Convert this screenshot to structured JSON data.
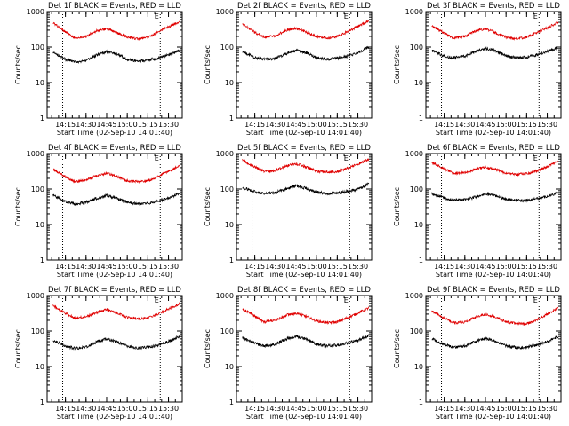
{
  "chart_data": [
    {
      "type": "line",
      "title": "Det 1f BLACK = Events, RED = LLD",
      "xlabel": "Start Time (02-Sep-10 14:01:40)",
      "ylabel": "Counts/sec",
      "yscale": "log",
      "ylim": [
        1,
        1000
      ],
      "xlim": [
        "14:01:40",
        "15:40"
      ],
      "xticks": [
        "14:15",
        "14:30",
        "14:45",
        "15:00",
        "15:15",
        "15:30"
      ],
      "yticks": [
        "1",
        "10",
        "100",
        "1000"
      ],
      "vlines": [
        "14:13",
        "15:24"
      ],
      "marker": "E",
      "series": [
        {
          "name": "LLD",
          "color": "#e00000",
          "x": [
            "14:06",
            "14:15",
            "14:22",
            "14:30",
            "14:38",
            "14:45",
            "14:52",
            "15:00",
            "15:08",
            "15:15",
            "15:22",
            "15:30",
            "15:38"
          ],
          "y": [
            480,
            270,
            180,
            200,
            290,
            330,
            260,
            190,
            170,
            190,
            260,
            370,
            520
          ]
        },
        {
          "name": "Events",
          "color": "#000000",
          "x": [
            "14:06",
            "14:15",
            "14:22",
            "14:30",
            "14:38",
            "14:45",
            "14:52",
            "15:00",
            "15:08",
            "15:15",
            "15:22",
            "15:30",
            "15:38"
          ],
          "y": [
            70,
            45,
            38,
            42,
            60,
            75,
            65,
            45,
            40,
            42,
            48,
            60,
            80
          ]
        }
      ]
    },
    {
      "type": "line",
      "title": "Det 2f BLACK = Events, RED = LLD",
      "xlabel": "Start Time (02-Sep-10 14:01:40)",
      "ylabel": "Counts/sec",
      "yscale": "log",
      "ylim": [
        1,
        1000
      ],
      "xlim": [
        "14:01:40",
        "15:40"
      ],
      "xticks": [
        "14:15",
        "14:30",
        "14:45",
        "15:00",
        "15:15",
        "15:30"
      ],
      "yticks": [
        "1",
        "10",
        "100",
        "1000"
      ],
      "vlines": [
        "14:13",
        "15:24"
      ],
      "marker": "E",
      "series": [
        {
          "name": "LLD",
          "color": "#e00000",
          "x": [
            "14:06",
            "14:15",
            "14:22",
            "14:30",
            "14:38",
            "14:45",
            "14:52",
            "15:00",
            "15:08",
            "15:15",
            "15:22",
            "15:30",
            "15:38"
          ],
          "y": [
            450,
            260,
            190,
            210,
            300,
            340,
            270,
            200,
            180,
            200,
            270,
            380,
            560
          ]
        },
        {
          "name": "Events",
          "color": "#000000",
          "x": [
            "14:06",
            "14:15",
            "14:22",
            "14:30",
            "14:38",
            "14:45",
            "14:52",
            "15:00",
            "15:08",
            "15:15",
            "15:22",
            "15:30",
            "15:38"
          ],
          "y": [
            75,
            50,
            45,
            48,
            65,
            80,
            70,
            50,
            45,
            48,
            55,
            70,
            100
          ]
        }
      ]
    },
    {
      "type": "line",
      "title": "Det 3f BLACK = Events, RED = LLD",
      "xlabel": "Start Time (02-Sep-10 14:01:40)",
      "ylabel": "Counts/sec",
      "yscale": "log",
      "ylim": [
        1,
        1000
      ],
      "xlim": [
        "14:01:40",
        "15:40"
      ],
      "xticks": [
        "14:15",
        "14:30",
        "14:45",
        "15:00",
        "15:15",
        "15:30"
      ],
      "yticks": [
        "1",
        "10",
        "100",
        "1000"
      ],
      "vlines": [
        "14:13",
        "15:24"
      ],
      "marker": "E",
      "series": [
        {
          "name": "LLD",
          "color": "#e00000",
          "x": [
            "14:06",
            "14:15",
            "14:22",
            "14:30",
            "14:38",
            "14:45",
            "14:52",
            "15:00",
            "15:08",
            "15:15",
            "15:22",
            "15:30",
            "15:38"
          ],
          "y": [
            400,
            250,
            180,
            200,
            290,
            330,
            260,
            190,
            170,
            190,
            250,
            350,
            500
          ]
        },
        {
          "name": "Events",
          "color": "#000000",
          "x": [
            "14:06",
            "14:15",
            "14:22",
            "14:30",
            "14:38",
            "14:45",
            "14:52",
            "15:00",
            "15:08",
            "15:15",
            "15:22",
            "15:30",
            "15:38"
          ],
          "y": [
            80,
            55,
            50,
            55,
            75,
            90,
            80,
            55,
            50,
            52,
            60,
            75,
            95
          ]
        }
      ]
    },
    {
      "type": "line",
      "title": "Det 4f BLACK = Events, RED = LLD",
      "xlabel": "Start Time (02-Sep-10 14:01:40)",
      "ylabel": "Counts/sec",
      "yscale": "log",
      "ylim": [
        1,
        1000
      ],
      "xlim": [
        "14:01:40",
        "15:40"
      ],
      "xticks": [
        "14:15",
        "14:30",
        "14:45",
        "15:00",
        "15:15",
        "15:30"
      ],
      "yticks": [
        "1",
        "10",
        "100",
        "1000"
      ],
      "vlines": [
        "14:13",
        "15:24"
      ],
      "marker": "E",
      "series": [
        {
          "name": "LLD",
          "color": "#e00000",
          "x": [
            "14:06",
            "14:15",
            "14:22",
            "14:30",
            "14:38",
            "14:45",
            "14:52",
            "15:00",
            "15:08",
            "15:15",
            "15:22",
            "15:30",
            "15:38"
          ],
          "y": [
            350,
            220,
            160,
            180,
            240,
            280,
            230,
            170,
            160,
            170,
            220,
            320,
            450
          ]
        },
        {
          "name": "Events",
          "color": "#000000",
          "x": [
            "14:06",
            "14:15",
            "14:22",
            "14:30",
            "14:38",
            "14:45",
            "14:52",
            "15:00",
            "15:08",
            "15:15",
            "15:22",
            "15:30",
            "15:38"
          ],
          "y": [
            65,
            45,
            38,
            42,
            55,
            65,
            55,
            42,
            38,
            40,
            45,
            55,
            75
          ]
        }
      ]
    },
    {
      "type": "line",
      "title": "Det 5f BLACK = Events, RED = LLD",
      "xlabel": "Start Time (02-Sep-10 14:01:40)",
      "ylabel": "Counts/sec",
      "yscale": "log",
      "ylim": [
        1,
        1000
      ],
      "xlim": [
        "14:01:40",
        "15:40"
      ],
      "xticks": [
        "14:15",
        "14:30",
        "14:45",
        "15:00",
        "15:15",
        "15:30"
      ],
      "yticks": [
        "1",
        "10",
        "100",
        "1000"
      ],
      "vlines": [
        "14:13",
        "15:24"
      ],
      "marker": "E",
      "series": [
        {
          "name": "LLD",
          "color": "#e00000",
          "x": [
            "14:06",
            "14:15",
            "14:22",
            "14:30",
            "14:38",
            "14:45",
            "14:52",
            "15:00",
            "15:08",
            "15:15",
            "15:22",
            "15:30",
            "15:38"
          ],
          "y": [
            650,
            420,
            310,
            330,
            450,
            520,
            420,
            320,
            300,
            310,
            380,
            500,
            700
          ]
        },
        {
          "name": "Events",
          "color": "#000000",
          "x": [
            "14:06",
            "14:15",
            "14:22",
            "14:30",
            "14:38",
            "14:45",
            "14:52",
            "15:00",
            "15:08",
            "15:15",
            "15:22",
            "15:30",
            "15:38"
          ],
          "y": [
            110,
            85,
            75,
            80,
            100,
            125,
            105,
            80,
            75,
            78,
            85,
            100,
            140
          ]
        }
      ]
    },
    {
      "type": "line",
      "title": "Det 6f BLACK = Events, RED = LLD",
      "xlabel": "Start Time (02-Sep-10 14:01:40)",
      "ylabel": "Counts/sec",
      "yscale": "log",
      "ylim": [
        1,
        1000
      ],
      "xlim": [
        "14:01:40",
        "15:40"
      ],
      "xticks": [
        "14:15",
        "14:30",
        "14:45",
        "15:00",
        "15:15",
        "15:30"
      ],
      "yticks": [
        "1",
        "10",
        "100",
        "1000"
      ],
      "vlines": [
        "14:13",
        "15:24"
      ],
      "marker": "E",
      "series": [
        {
          "name": "LLD",
          "color": "#e00000",
          "x": [
            "14:06",
            "14:15",
            "14:22",
            "14:30",
            "14:38",
            "14:45",
            "14:52",
            "15:00",
            "15:08",
            "15:15",
            "15:22",
            "15:30",
            "15:38"
          ],
          "y": [
            560,
            370,
            280,
            290,
            360,
            420,
            360,
            280,
            260,
            270,
            320,
            430,
            620
          ]
        },
        {
          "name": "Events",
          "color": "#000000",
          "x": [
            "14:06",
            "14:15",
            "14:22",
            "14:30",
            "14:38",
            "14:45",
            "14:52",
            "15:00",
            "15:08",
            "15:15",
            "15:22",
            "15:30",
            "15:38"
          ],
          "y": [
            75,
            55,
            48,
            50,
            60,
            75,
            65,
            52,
            48,
            48,
            52,
            62,
            80
          ]
        }
      ]
    },
    {
      "type": "line",
      "title": "Det 7f BLACK = Events, RED = LLD",
      "xlabel": "Start Time (02-Sep-10 14:01:40)",
      "ylabel": "Counts/sec",
      "yscale": "log",
      "ylim": [
        1,
        1000
      ],
      "xlim": [
        "14:01:40",
        "15:40"
      ],
      "xticks": [
        "14:15",
        "14:30",
        "14:45",
        "15:00",
        "15:15",
        "15:30"
      ],
      "yticks": [
        "1",
        "10",
        "100",
        "1000"
      ],
      "vlines": [
        "14:13",
        "15:24"
      ],
      "marker": "E",
      "series": [
        {
          "name": "LLD",
          "color": "#e00000",
          "x": [
            "14:06",
            "14:15",
            "14:22",
            "14:30",
            "14:38",
            "14:45",
            "14:52",
            "15:00",
            "15:08",
            "15:15",
            "15:22",
            "15:30",
            "15:38"
          ],
          "y": [
            520,
            320,
            230,
            250,
            340,
            400,
            330,
            240,
            220,
            230,
            300,
            420,
            580
          ]
        },
        {
          "name": "Events",
          "color": "#000000",
          "x": [
            "14:06",
            "14:15",
            "14:22",
            "14:30",
            "14:38",
            "14:45",
            "14:52",
            "15:00",
            "15:08",
            "15:15",
            "15:22",
            "15:30",
            "15:38"
          ],
          "y": [
            55,
            38,
            32,
            35,
            50,
            60,
            50,
            38,
            33,
            35,
            40,
            50,
            70
          ]
        }
      ]
    },
    {
      "type": "line",
      "title": "Det 8f BLACK = Events, RED = LLD",
      "xlabel": "Start Time (02-Sep-10 14:01:40)",
      "ylabel": "Counts/sec",
      "yscale": "log",
      "ylim": [
        1,
        1000
      ],
      "xlim": [
        "14:01:40",
        "15:40"
      ],
      "xticks": [
        "14:15",
        "14:30",
        "14:45",
        "15:00",
        "15:15",
        "15:30"
      ],
      "yticks": [
        "1",
        "10",
        "100",
        "1000"
      ],
      "vlines": [
        "14:13",
        "15:24"
      ],
      "marker": "E",
      "series": [
        {
          "name": "LLD",
          "color": "#e00000",
          "x": [
            "14:06",
            "14:15",
            "14:22",
            "14:30",
            "14:38",
            "14:45",
            "14:52",
            "15:00",
            "15:08",
            "15:15",
            "15:22",
            "15:30",
            "15:38"
          ],
          "y": [
            430,
            260,
            180,
            200,
            280,
            320,
            260,
            190,
            170,
            180,
            230,
            320,
            450
          ]
        },
        {
          "name": "Events",
          "color": "#000000",
          "x": [
            "14:06",
            "14:15",
            "14:22",
            "14:30",
            "14:38",
            "14:45",
            "14:52",
            "15:00",
            "15:08",
            "15:15",
            "15:22",
            "15:30",
            "15:38"
          ],
          "y": [
            65,
            45,
            38,
            42,
            60,
            72,
            60,
            42,
            38,
            40,
            45,
            55,
            75
          ]
        }
      ]
    },
    {
      "type": "line",
      "title": "Det 9f BLACK = Events, RED = LLD",
      "xlabel": "Start Time (02-Sep-10 14:01:40)",
      "ylabel": "Counts/sec",
      "yscale": "log",
      "ylim": [
        1,
        1000
      ],
      "xlim": [
        "14:01:40",
        "15:40"
      ],
      "xticks": [
        "14:15",
        "14:30",
        "14:45",
        "15:00",
        "15:15",
        "15:30"
      ],
      "yticks": [
        "1",
        "10",
        "100",
        "1000"
      ],
      "vlines": [
        "14:13",
        "15:24"
      ],
      "marker": "E",
      "series": [
        {
          "name": "LLD",
          "color": "#e00000",
          "x": [
            "14:06",
            "14:15",
            "14:22",
            "14:30",
            "14:38",
            "14:45",
            "14:52",
            "15:00",
            "15:08",
            "15:15",
            "15:22",
            "15:30",
            "15:38"
          ],
          "y": [
            360,
            230,
            170,
            180,
            250,
            300,
            250,
            180,
            160,
            160,
            200,
            300,
            450
          ]
        },
        {
          "name": "Events",
          "color": "#000000",
          "x": [
            "14:06",
            "14:15",
            "14:22",
            "14:30",
            "14:38",
            "14:45",
            "14:52",
            "15:00",
            "15:08",
            "15:15",
            "15:22",
            "15:30",
            "15:38"
          ],
          "y": [
            60,
            42,
            35,
            38,
            52,
            62,
            52,
            38,
            34,
            35,
            40,
            50,
            70
          ]
        }
      ]
    }
  ]
}
